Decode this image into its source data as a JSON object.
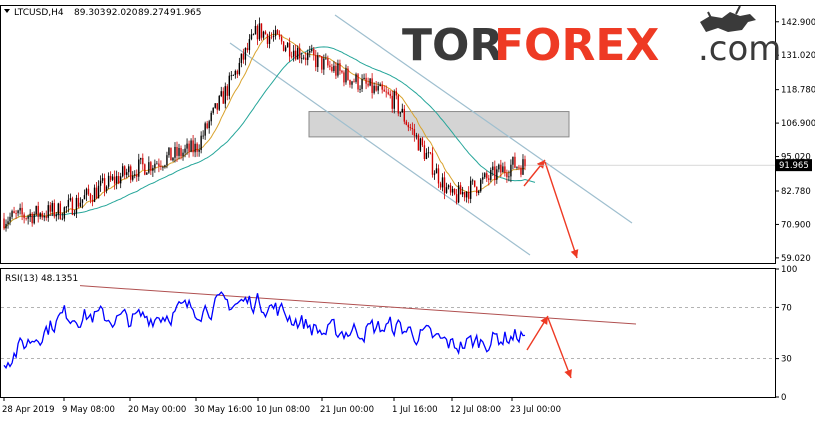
{
  "header": {
    "symbol": "LTCUSD,H4",
    "open": "89.303",
    "high": "92.020",
    "low": "89.274",
    "close": "91.965"
  },
  "logo": {
    "part1": "TOR",
    "part2": "FOREX",
    "part3": ".com"
  },
  "price_labels": [
    "142.900",
    "131.020",
    "118.780",
    "106.900",
    "95.020",
    "82.780",
    "70.900",
    "59.020"
  ],
  "current_price": "91.965",
  "rsi_header": "RSI(13) 48.1351",
  "rsi_labels": [
    "100",
    "70",
    "30",
    "0"
  ],
  "x_labels": [
    "28 Apr 2019",
    "9 May 08:00",
    "20 May 00:00",
    "30 May 16:00",
    "10 Jun 08:00",
    "21 Jun 00:00",
    "1 Jul 16:00",
    "12 Jul 08:00",
    "23 Jul 00:00"
  ],
  "chart_data": [
    {
      "type": "candlestick",
      "title": "LTCUSD,H4",
      "x": [
        "28 Apr 2019",
        "9 May 08:00",
        "20 May 00:00",
        "30 May 16:00",
        "10 Jun 08:00",
        "21 Jun 00:00",
        "1 Jul 16:00",
        "12 Jul 08:00",
        "23 Jul 00:00"
      ],
      "series": [
        {
          "name": "close",
          "values": [
            73,
            76,
            90,
            98,
            140,
            128,
            115,
            80,
            92
          ]
        }
      ],
      "ohlc_last": {
        "open": 89.303,
        "high": 92.02,
        "low": 89.274,
        "close": 91.965
      },
      "yticks": [
        142.9,
        131.02,
        118.78,
        106.9,
        95.02,
        82.78,
        70.9,
        59.02
      ],
      "ylim": [
        57.2,
        148.5
      ],
      "current": 91.965,
      "resistance_zone": [
        102,
        111
      ],
      "colors": {
        "up": "#000000",
        "down": "#d00000",
        "ma_fast": "#d9a32e",
        "ma_slow": "#26a69a",
        "channel": "#9fbfcf",
        "arrow": "#ee3a24"
      }
    },
    {
      "type": "line",
      "title": "RSI(13) 48.1351",
      "x": [
        "28 Apr 2019",
        "9 May 08:00",
        "20 May 00:00",
        "30 May 16:00",
        "10 Jun 08:00",
        "21 Jun 00:00",
        "1 Jul 16:00",
        "12 Jul 08:00",
        "23 Jul 00:00"
      ],
      "series": [
        {
          "name": "RSI(13)",
          "values": [
            30,
            65,
            60,
            70,
            75,
            50,
            55,
            40,
            48.1351
          ]
        }
      ],
      "yticks": [
        100,
        70,
        30,
        0
      ],
      "ylim": [
        0,
        100
      ],
      "levels": [
        70,
        30
      ],
      "colors": {
        "line": "#0000ff",
        "trend": "#b05050",
        "arrow": "#ee3a24"
      }
    }
  ]
}
